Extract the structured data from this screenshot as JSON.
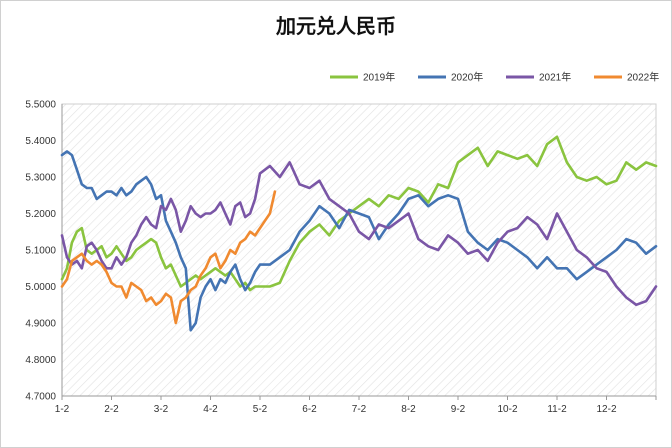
{
  "chart_data": {
    "type": "line",
    "title": "加元兑人民币",
    "xlabel": "",
    "ylabel": "",
    "x_ticks": [
      "1-2",
      "2-2",
      "3-2",
      "4-2",
      "5-2",
      "6-2",
      "7-2",
      "8-2",
      "9-2",
      "10-2",
      "11-2",
      "12-2"
    ],
    "ylim": [
      4.7,
      5.5
    ],
    "y_ticks": [
      "4.7000",
      "4.8000",
      "4.9000",
      "5.0000",
      "5.1000",
      "5.2000",
      "5.3000",
      "5.4000",
      "5.5000"
    ],
    "legend_position": "top-right",
    "grid": "diagonal-hatch",
    "x_unit_note": "x values are month positions (1 = 1-2, 12 = 12-2, 13 = year end)",
    "series": [
      {
        "name": "2019年",
        "color": "#8ac43f",
        "points": [
          [
            1.0,
            5.02
          ],
          [
            1.1,
            5.05
          ],
          [
            1.2,
            5.12
          ],
          [
            1.3,
            5.15
          ],
          [
            1.4,
            5.16
          ],
          [
            1.5,
            5.1
          ],
          [
            1.6,
            5.09
          ],
          [
            1.7,
            5.1
          ],
          [
            1.8,
            5.11
          ],
          [
            1.9,
            5.08
          ],
          [
            2.0,
            5.09
          ],
          [
            2.1,
            5.11
          ],
          [
            2.2,
            5.09
          ],
          [
            2.3,
            5.07
          ],
          [
            2.4,
            5.08
          ],
          [
            2.5,
            5.1
          ],
          [
            2.6,
            5.11
          ],
          [
            2.7,
            5.12
          ],
          [
            2.8,
            5.13
          ],
          [
            2.9,
            5.12
          ],
          [
            3.0,
            5.08
          ],
          [
            3.1,
            5.05
          ],
          [
            3.2,
            5.06
          ],
          [
            3.3,
            5.03
          ],
          [
            3.4,
            5.0
          ],
          [
            3.5,
            5.01
          ],
          [
            3.6,
            5.02
          ],
          [
            3.7,
            5.03
          ],
          [
            3.8,
            5.02
          ],
          [
            3.9,
            5.03
          ],
          [
            4.0,
            5.04
          ],
          [
            4.1,
            5.05
          ],
          [
            4.2,
            5.04
          ],
          [
            4.3,
            5.03
          ],
          [
            4.4,
            5.04
          ],
          [
            4.5,
            5.02
          ],
          [
            4.6,
            5.0
          ],
          [
            4.7,
            5.01
          ],
          [
            4.8,
            4.99
          ],
          [
            4.9,
            5.0
          ],
          [
            5.0,
            5.0
          ],
          [
            5.2,
            5.0
          ],
          [
            5.4,
            5.01
          ],
          [
            5.6,
            5.07
          ],
          [
            5.8,
            5.12
          ],
          [
            6.0,
            5.15
          ],
          [
            6.2,
            5.17
          ],
          [
            6.4,
            5.14
          ],
          [
            6.6,
            5.18
          ],
          [
            6.8,
            5.2
          ],
          [
            7.0,
            5.22
          ],
          [
            7.2,
            5.24
          ],
          [
            7.4,
            5.22
          ],
          [
            7.6,
            5.25
          ],
          [
            7.8,
            5.24
          ],
          [
            8.0,
            5.27
          ],
          [
            8.2,
            5.26
          ],
          [
            8.4,
            5.23
          ],
          [
            8.6,
            5.28
          ],
          [
            8.8,
            5.27
          ],
          [
            9.0,
            5.34
          ],
          [
            9.2,
            5.36
          ],
          [
            9.4,
            5.38
          ],
          [
            9.6,
            5.33
          ],
          [
            9.8,
            5.37
          ],
          [
            10.0,
            5.36
          ],
          [
            10.2,
            5.35
          ],
          [
            10.4,
            5.36
          ],
          [
            10.6,
            5.33
          ],
          [
            10.8,
            5.39
          ],
          [
            11.0,
            5.41
          ],
          [
            11.2,
            5.34
          ],
          [
            11.4,
            5.3
          ],
          [
            11.6,
            5.29
          ],
          [
            11.8,
            5.3
          ],
          [
            12.0,
            5.28
          ],
          [
            12.2,
            5.29
          ],
          [
            12.4,
            5.34
          ],
          [
            12.6,
            5.32
          ],
          [
            12.8,
            5.34
          ],
          [
            13.0,
            5.33
          ]
        ]
      },
      {
        "name": "2020年",
        "color": "#4474b3",
        "points": [
          [
            1.0,
            5.36
          ],
          [
            1.1,
            5.37
          ],
          [
            1.2,
            5.36
          ],
          [
            1.3,
            5.32
          ],
          [
            1.4,
            5.28
          ],
          [
            1.5,
            5.27
          ],
          [
            1.6,
            5.27
          ],
          [
            1.7,
            5.24
          ],
          [
            1.8,
            5.25
          ],
          [
            1.9,
            5.26
          ],
          [
            2.0,
            5.26
          ],
          [
            2.1,
            5.25
          ],
          [
            2.2,
            5.27
          ],
          [
            2.3,
            5.25
          ],
          [
            2.4,
            5.26
          ],
          [
            2.5,
            5.28
          ],
          [
            2.6,
            5.29
          ],
          [
            2.7,
            5.3
          ],
          [
            2.8,
            5.28
          ],
          [
            2.9,
            5.24
          ],
          [
            3.0,
            5.25
          ],
          [
            3.1,
            5.18
          ],
          [
            3.2,
            5.15
          ],
          [
            3.3,
            5.12
          ],
          [
            3.4,
            5.08
          ],
          [
            3.5,
            5.05
          ],
          [
            3.6,
            4.88
          ],
          [
            3.7,
            4.9
          ],
          [
            3.8,
            4.97
          ],
          [
            3.9,
            5.0
          ],
          [
            4.0,
            5.02
          ],
          [
            4.1,
            4.99
          ],
          [
            4.2,
            5.02
          ],
          [
            4.3,
            5.01
          ],
          [
            4.4,
            5.04
          ],
          [
            4.5,
            5.06
          ],
          [
            4.6,
            5.02
          ],
          [
            4.7,
            4.99
          ],
          [
            4.8,
            5.01
          ],
          [
            4.9,
            5.04
          ],
          [
            5.0,
            5.06
          ],
          [
            5.2,
            5.06
          ],
          [
            5.4,
            5.08
          ],
          [
            5.6,
            5.1
          ],
          [
            5.8,
            5.15
          ],
          [
            6.0,
            5.18
          ],
          [
            6.2,
            5.22
          ],
          [
            6.4,
            5.2
          ],
          [
            6.6,
            5.16
          ],
          [
            6.8,
            5.21
          ],
          [
            7.0,
            5.2
          ],
          [
            7.2,
            5.19
          ],
          [
            7.4,
            5.13
          ],
          [
            7.6,
            5.17
          ],
          [
            7.8,
            5.2
          ],
          [
            8.0,
            5.24
          ],
          [
            8.2,
            5.25
          ],
          [
            8.4,
            5.22
          ],
          [
            8.6,
            5.24
          ],
          [
            8.8,
            5.25
          ],
          [
            9.0,
            5.24
          ],
          [
            9.2,
            5.15
          ],
          [
            9.4,
            5.12
          ],
          [
            9.6,
            5.1
          ],
          [
            9.8,
            5.13
          ],
          [
            10.0,
            5.12
          ],
          [
            10.2,
            5.1
          ],
          [
            10.4,
            5.08
          ],
          [
            10.6,
            5.05
          ],
          [
            10.8,
            5.08
          ],
          [
            11.0,
            5.05
          ],
          [
            11.2,
            5.05
          ],
          [
            11.4,
            5.02
          ],
          [
            11.6,
            5.04
          ],
          [
            11.8,
            5.06
          ],
          [
            12.0,
            5.08
          ],
          [
            12.2,
            5.1
          ],
          [
            12.4,
            5.13
          ],
          [
            12.6,
            5.12
          ],
          [
            12.8,
            5.09
          ],
          [
            13.0,
            5.11
          ]
        ]
      },
      {
        "name": "2021年",
        "color": "#7a56a6",
        "points": [
          [
            1.0,
            5.14
          ],
          [
            1.1,
            5.08
          ],
          [
            1.2,
            5.06
          ],
          [
            1.3,
            5.07
          ],
          [
            1.4,
            5.05
          ],
          [
            1.5,
            5.11
          ],
          [
            1.6,
            5.12
          ],
          [
            1.7,
            5.1
          ],
          [
            1.8,
            5.07
          ],
          [
            1.9,
            5.05
          ],
          [
            2.0,
            5.05
          ],
          [
            2.1,
            5.08
          ],
          [
            2.2,
            5.06
          ],
          [
            2.3,
            5.08
          ],
          [
            2.4,
            5.12
          ],
          [
            2.5,
            5.14
          ],
          [
            2.6,
            5.17
          ],
          [
            2.7,
            5.19
          ],
          [
            2.8,
            5.17
          ],
          [
            2.9,
            5.16
          ],
          [
            3.0,
            5.22
          ],
          [
            3.1,
            5.21
          ],
          [
            3.2,
            5.24
          ],
          [
            3.3,
            5.21
          ],
          [
            3.4,
            5.15
          ],
          [
            3.5,
            5.18
          ],
          [
            3.6,
            5.22
          ],
          [
            3.7,
            5.2
          ],
          [
            3.8,
            5.19
          ],
          [
            3.9,
            5.2
          ],
          [
            4.0,
            5.2
          ],
          [
            4.1,
            5.21
          ],
          [
            4.2,
            5.23
          ],
          [
            4.3,
            5.2
          ],
          [
            4.4,
            5.17
          ],
          [
            4.5,
            5.22
          ],
          [
            4.6,
            5.23
          ],
          [
            4.7,
            5.19
          ],
          [
            4.8,
            5.2
          ],
          [
            4.9,
            5.24
          ],
          [
            5.0,
            5.31
          ],
          [
            5.2,
            5.33
          ],
          [
            5.4,
            5.3
          ],
          [
            5.6,
            5.34
          ],
          [
            5.8,
            5.28
          ],
          [
            6.0,
            5.27
          ],
          [
            6.2,
            5.29
          ],
          [
            6.4,
            5.24
          ],
          [
            6.6,
            5.22
          ],
          [
            6.8,
            5.2
          ],
          [
            7.0,
            5.15
          ],
          [
            7.2,
            5.13
          ],
          [
            7.4,
            5.17
          ],
          [
            7.6,
            5.16
          ],
          [
            7.8,
            5.18
          ],
          [
            8.0,
            5.2
          ],
          [
            8.2,
            5.13
          ],
          [
            8.4,
            5.11
          ],
          [
            8.6,
            5.1
          ],
          [
            8.8,
            5.14
          ],
          [
            9.0,
            5.12
          ],
          [
            9.2,
            5.09
          ],
          [
            9.4,
            5.1
          ],
          [
            9.6,
            5.07
          ],
          [
            9.8,
            5.12
          ],
          [
            10.0,
            5.15
          ],
          [
            10.2,
            5.16
          ],
          [
            10.4,
            5.19
          ],
          [
            10.6,
            5.17
          ],
          [
            10.8,
            5.13
          ],
          [
            11.0,
            5.2
          ],
          [
            11.2,
            5.15
          ],
          [
            11.4,
            5.1
          ],
          [
            11.6,
            5.08
          ],
          [
            11.8,
            5.05
          ],
          [
            12.0,
            5.04
          ],
          [
            12.2,
            5.0
          ],
          [
            12.4,
            4.97
          ],
          [
            12.6,
            4.95
          ],
          [
            12.8,
            4.96
          ],
          [
            13.0,
            5.0
          ]
        ]
      },
      {
        "name": "2022年",
        "color": "#f08a30",
        "points": [
          [
            1.0,
            5.0
          ],
          [
            1.1,
            5.02
          ],
          [
            1.2,
            5.07
          ],
          [
            1.3,
            5.08
          ],
          [
            1.4,
            5.09
          ],
          [
            1.5,
            5.07
          ],
          [
            1.6,
            5.06
          ],
          [
            1.7,
            5.07
          ],
          [
            1.8,
            5.06
          ],
          [
            1.9,
            5.04
          ],
          [
            2.0,
            5.01
          ],
          [
            2.1,
            5.0
          ],
          [
            2.2,
            5.0
          ],
          [
            2.3,
            4.97
          ],
          [
            2.4,
            5.01
          ],
          [
            2.5,
            5.0
          ],
          [
            2.6,
            4.99
          ],
          [
            2.7,
            4.96
          ],
          [
            2.8,
            4.97
          ],
          [
            2.9,
            4.95
          ],
          [
            3.0,
            4.96
          ],
          [
            3.1,
            4.98
          ],
          [
            3.2,
            4.97
          ],
          [
            3.3,
            4.9
          ],
          [
            3.4,
            4.96
          ],
          [
            3.5,
            4.97
          ],
          [
            3.6,
            4.99
          ],
          [
            3.7,
            5.0
          ],
          [
            3.8,
            5.03
          ],
          [
            3.9,
            5.05
          ],
          [
            4.0,
            5.08
          ],
          [
            4.1,
            5.09
          ],
          [
            4.2,
            5.05
          ],
          [
            4.3,
            5.07
          ],
          [
            4.4,
            5.1
          ],
          [
            4.5,
            5.09
          ],
          [
            4.6,
            5.12
          ],
          [
            4.7,
            5.13
          ],
          [
            4.8,
            5.15
          ],
          [
            4.9,
            5.14
          ],
          [
            5.0,
            5.16
          ],
          [
            5.1,
            5.18
          ],
          [
            5.2,
            5.2
          ],
          [
            5.3,
            5.26
          ]
        ]
      }
    ]
  }
}
